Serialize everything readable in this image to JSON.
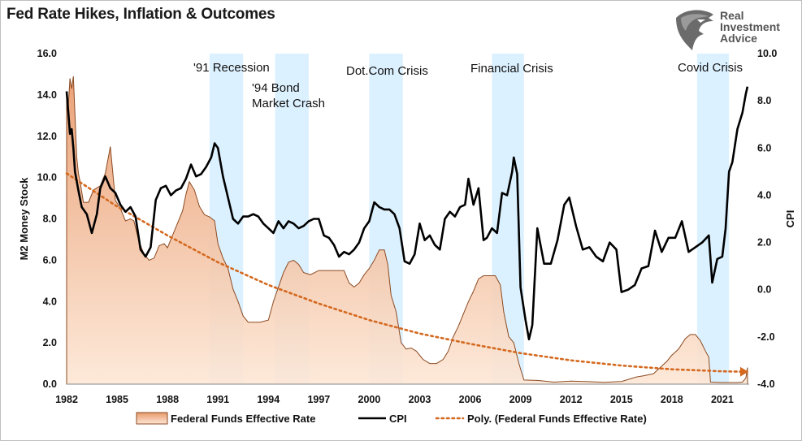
{
  "title": "Fed Rate Hikes, Inflation & Outcomes",
  "logo": {
    "line1": "Real",
    "line2": "Investment",
    "line3": "Advice",
    "icon": "eagle-head-icon"
  },
  "colors": {
    "fed_fill_top": "#e8996a",
    "fed_fill_bottom": "#fde7d6",
    "fed_stroke": "#8c4a22",
    "cpi": "#000000",
    "poly": "#d4691f",
    "recession": "#d6efff"
  },
  "chart_data": {
    "type": "area+line",
    "title": "Fed Rate Hikes, Inflation & Outcomes",
    "xlabel": "",
    "ylabel_left": "M2 Money Stock",
    "ylabel_right": "CPI",
    "xlim": [
      1982,
      2022.6
    ],
    "ylim_left": [
      0,
      16
    ],
    "ylim_right": [
      -4,
      10
    ],
    "x_ticks": [
      "1982",
      "1985",
      "1988",
      "1991",
      "1994",
      "1997",
      "2000",
      "2003",
      "2006",
      "2009",
      "2012",
      "2015",
      "2018",
      "2021"
    ],
    "y_left_ticks": [
      "0.0",
      "2.0",
      "4.0",
      "6.0",
      "8.0",
      "10.0",
      "12.0",
      "14.0",
      "16.0"
    ],
    "y_right_ticks": [
      "-4.0",
      "-2.0",
      "0.0",
      "2.0",
      "4.0",
      "6.0",
      "8.0",
      "10.0"
    ],
    "events": [
      {
        "label": "'91 Recession",
        "start": 1990.5,
        "end": 1992.5,
        "label_lines": [
          "'91 Recession"
        ]
      },
      {
        "label": "'94 Bond Market Crash",
        "start": 1994.4,
        "end": 1996.4,
        "label_lines": [
          "'94 Bond",
          "Market Crash"
        ]
      },
      {
        "label": "Dot.Com Crisis",
        "start": 2000.0,
        "end": 2002.0,
        "label_lines": [
          "Dot.Com Crisis"
        ]
      },
      {
        "label": "Financial Crisis",
        "start": 2007.3,
        "end": 2009.2,
        "label_lines": [
          "Financial Crisis"
        ]
      },
      {
        "label": "Covid Crisis",
        "start": 2019.5,
        "end": 2021.4,
        "label_lines": [
          "Covid Crisis"
        ]
      }
    ],
    "series": [
      {
        "name": "Federal Funds Effective Rate",
        "axis": "left",
        "style": "area",
        "x": [
          1982.0,
          1982.1,
          1982.2,
          1982.3,
          1982.4,
          1982.5,
          1982.6,
          1982.7,
          1982.8,
          1982.9,
          1983.0,
          1983.3,
          1983.6,
          1984.0,
          1984.3,
          1984.6,
          1984.9,
          1985.2,
          1985.5,
          1985.8,
          1986.0,
          1986.3,
          1986.6,
          1986.9,
          1987.2,
          1987.5,
          1987.8,
          1988.0,
          1988.3,
          1988.6,
          1988.9,
          1989.1,
          1989.3,
          1989.6,
          1989.9,
          1990.2,
          1990.5,
          1990.8,
          1991.0,
          1991.3,
          1991.6,
          1991.9,
          1992.2,
          1992.5,
          1992.8,
          1993.1,
          1993.5,
          1994.0,
          1994.3,
          1994.6,
          1994.9,
          1995.2,
          1995.5,
          1995.8,
          1996.1,
          1996.5,
          1997.0,
          1997.5,
          1998.0,
          1998.5,
          1998.8,
          1999.1,
          1999.4,
          1999.7,
          2000.0,
          2000.3,
          2000.6,
          2000.9,
          2001.1,
          2001.3,
          2001.6,
          2001.9,
          2002.2,
          2002.5,
          2002.8,
          2003.2,
          2003.6,
          2004.0,
          2004.4,
          2004.7,
          2005.0,
          2005.3,
          2005.6,
          2005.9,
          2006.2,
          2006.5,
          2006.8,
          2007.2,
          2007.5,
          2007.8,
          2008.0,
          2008.3,
          2008.6,
          2008.9,
          2009.2,
          2010,
          2011,
          2012,
          2013,
          2014,
          2015,
          2015.9,
          2016.3,
          2016.9,
          2017.3,
          2017.7,
          2018.0,
          2018.4,
          2018.8,
          2019.1,
          2019.4,
          2019.7,
          2020.0,
          2020.2,
          2020.3,
          2021,
          2021.9,
          2022.2,
          2022.4,
          2022.5
        ],
        "values": [
          14.0,
          13.5,
          14.8,
          14.3,
          14.9,
          13.0,
          11.0,
          10.2,
          9.8,
          9.3,
          8.8,
          8.8,
          9.4,
          9.6,
          10.2,
          11.5,
          8.9,
          8.5,
          7.9,
          8.0,
          7.9,
          6.9,
          6.3,
          6.0,
          6.1,
          6.7,
          6.8,
          6.6,
          7.2,
          7.8,
          8.4,
          9.2,
          9.8,
          9.4,
          8.6,
          8.2,
          8.1,
          7.9,
          6.8,
          6.1,
          5.6,
          4.6,
          4.0,
          3.3,
          3.0,
          3.0,
          3.0,
          3.1,
          4.0,
          4.7,
          5.4,
          5.9,
          6.0,
          5.8,
          5.4,
          5.3,
          5.5,
          5.5,
          5.5,
          5.5,
          4.9,
          4.7,
          4.9,
          5.3,
          5.6,
          6.0,
          6.5,
          6.5,
          5.8,
          4.3,
          3.5,
          2.0,
          1.7,
          1.75,
          1.6,
          1.2,
          1.0,
          1.0,
          1.2,
          1.6,
          2.3,
          2.8,
          3.4,
          4.0,
          4.5,
          5.1,
          5.25,
          5.25,
          5.25,
          4.8,
          3.5,
          2.3,
          2.0,
          1.0,
          0.2,
          0.18,
          0.1,
          0.15,
          0.12,
          0.09,
          0.13,
          0.35,
          0.4,
          0.5,
          0.8,
          1.1,
          1.4,
          1.7,
          2.2,
          2.4,
          2.4,
          2.1,
          1.6,
          1.3,
          0.1,
          0.08,
          0.08,
          0.1,
          0.3,
          0.8
        ]
      },
      {
        "name": "CPI",
        "axis": "right",
        "style": "line",
        "x": [
          1982.0,
          1982.1,
          1982.2,
          1982.3,
          1982.4,
          1982.5,
          1982.7,
          1982.9,
          1983.2,
          1983.5,
          1983.8,
          1984.0,
          1984.3,
          1984.6,
          1984.9,
          1985.2,
          1985.5,
          1985.8,
          1986.1,
          1986.4,
          1986.7,
          1987.0,
          1987.3,
          1987.6,
          1987.9,
          1988.2,
          1988.5,
          1988.8,
          1989.1,
          1989.4,
          1989.7,
          1990.0,
          1990.3,
          1990.6,
          1990.8,
          1991.0,
          1991.3,
          1991.6,
          1991.9,
          1992.2,
          1992.5,
          1992.8,
          1993.1,
          1993.4,
          1993.7,
          1994.0,
          1994.3,
          1994.6,
          1994.9,
          1995.2,
          1995.5,
          1995.8,
          1996.1,
          1996.4,
          1996.7,
          1997.0,
          1997.3,
          1997.6,
          1997.9,
          1998.2,
          1998.5,
          1998.8,
          1999.1,
          1999.4,
          1999.7,
          2000.0,
          2000.3,
          2000.6,
          2000.9,
          2001.2,
          2001.5,
          2001.8,
          2002.1,
          2002.4,
          2002.7,
          2003.0,
          2003.3,
          2003.6,
          2003.9,
          2004.2,
          2004.5,
          2004.8,
          2005.1,
          2005.4,
          2005.7,
          2005.9,
          2006.2,
          2006.5,
          2006.8,
          2007.0,
          2007.3,
          2007.6,
          2007.9,
          2008.2,
          2008.5,
          2008.6,
          2008.8,
          2009.0,
          2009.3,
          2009.5,
          2009.7,
          2010.0,
          2010.4,
          2010.8,
          2011.2,
          2011.6,
          2011.9,
          2012.3,
          2012.7,
          2013.1,
          2013.5,
          2013.9,
          2014.3,
          2014.7,
          2015.0,
          2015.4,
          2015.8,
          2016.2,
          2016.6,
          2017.0,
          2017.4,
          2017.8,
          2018.2,
          2018.6,
          2019.0,
          2019.4,
          2019.8,
          2020.2,
          2020.4,
          2020.7,
          2021.0,
          2021.2,
          2021.4,
          2021.6,
          2021.9,
          2022.2,
          2022.4,
          2022.5
        ],
        "values": [
          8.4,
          7.5,
          6.6,
          6.8,
          6.0,
          5.0,
          4.2,
          3.5,
          3.2,
          2.4,
          3.2,
          4.3,
          4.8,
          4.3,
          4.1,
          3.6,
          3.3,
          3.5,
          3.1,
          1.7,
          1.4,
          1.8,
          3.8,
          4.3,
          4.4,
          4.0,
          4.2,
          4.3,
          4.7,
          5.3,
          4.8,
          4.9,
          5.2,
          5.6,
          6.2,
          6.0,
          4.8,
          3.9,
          3.0,
          2.8,
          3.1,
          3.1,
          3.2,
          3.1,
          2.8,
          2.6,
          2.4,
          2.9,
          2.6,
          2.9,
          2.8,
          2.6,
          2.7,
          2.9,
          3.0,
          3.0,
          2.3,
          2.2,
          1.9,
          1.4,
          1.6,
          1.5,
          1.7,
          2.0,
          2.6,
          2.9,
          3.7,
          3.5,
          3.4,
          3.4,
          3.2,
          2.6,
          1.2,
          1.1,
          1.5,
          2.8,
          2.1,
          2.3,
          1.9,
          1.7,
          3.0,
          3.3,
          3.1,
          3.5,
          3.6,
          4.7,
          3.6,
          4.3,
          2.1,
          2.2,
          2.6,
          2.4,
          4.1,
          4.0,
          5.0,
          5.6,
          4.9,
          0.1,
          -1.3,
          -2.1,
          -1.5,
          2.6,
          1.1,
          1.1,
          2.1,
          3.6,
          3.9,
          2.7,
          1.7,
          1.8,
          1.4,
          1.2,
          2.0,
          1.7,
          -0.1,
          0.0,
          0.2,
          0.9,
          1.0,
          2.5,
          1.6,
          2.2,
          2.2,
          2.9,
          1.6,
          1.8,
          2.0,
          2.3,
          0.3,
          1.3,
          1.4,
          2.6,
          5.0,
          5.4,
          6.8,
          7.5,
          8.3,
          8.6
        ]
      },
      {
        "name": "Poly. (Federal Funds Effective Rate)",
        "axis": "left",
        "style": "dotted-trend",
        "x": [
          1982,
          1985,
          1988,
          1991,
          1994,
          1997,
          2000,
          2003,
          2006,
          2009,
          2012,
          2015,
          2018,
          2021,
          2022.5
        ],
        "values": [
          10.2,
          8.6,
          7.2,
          5.9,
          4.8,
          3.9,
          3.1,
          2.45,
          1.95,
          1.5,
          1.15,
          0.9,
          0.72,
          0.62,
          0.6
        ]
      }
    ],
    "legend": [
      "Federal Funds Effective Rate",
      "CPI",
      "Poly. (Federal Funds Effective Rate)"
    ],
    "legend_position": "bottom-center"
  }
}
